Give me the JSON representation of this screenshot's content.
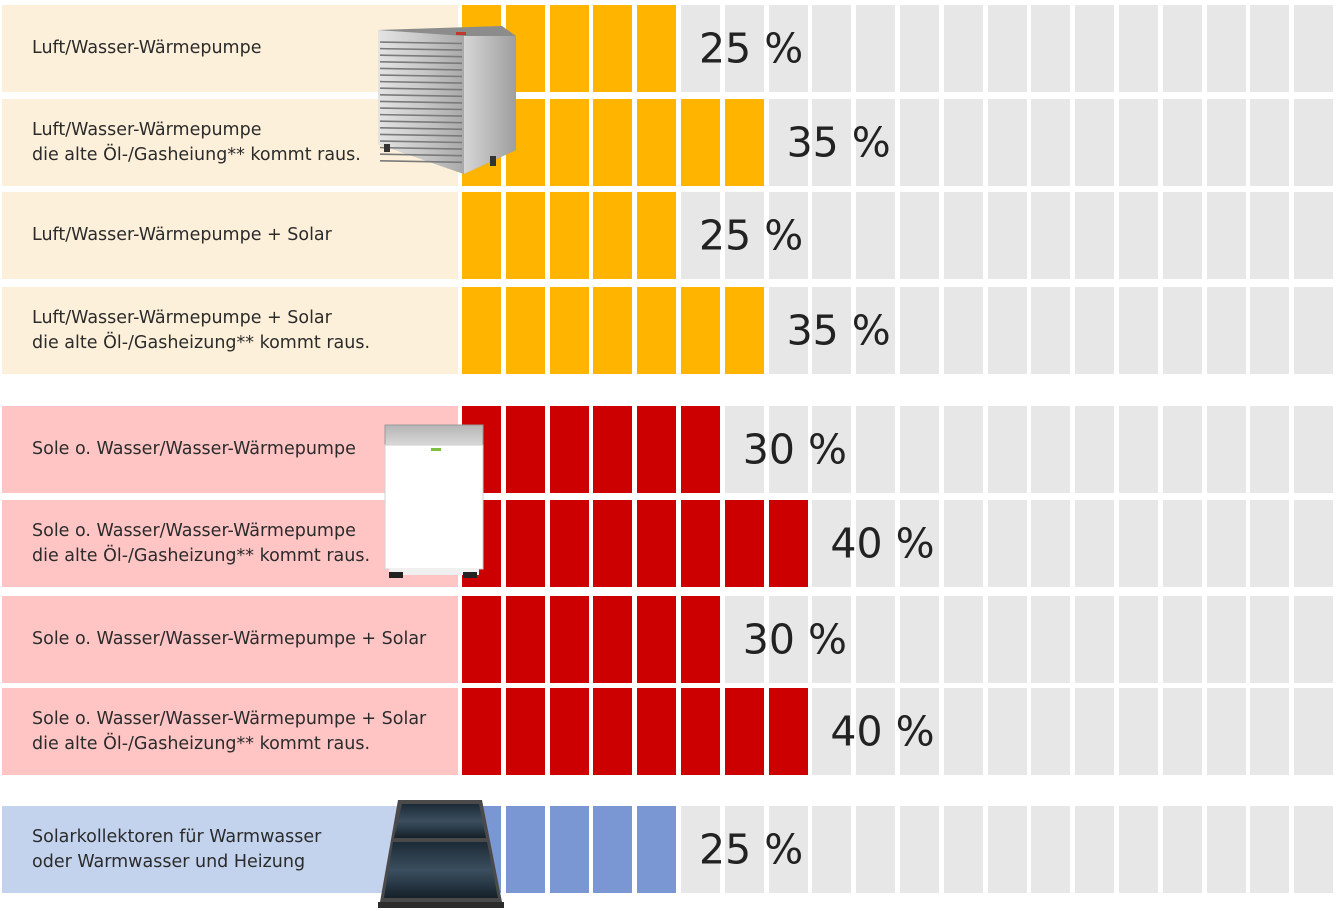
{
  "colors": {
    "yellow_label_bg": "#fdf0da",
    "yellow_fill": "#ffb400",
    "red_label_bg": "#ffc5c5",
    "red_fill": "#cc0000",
    "blue_label_bg": "#c3d3ee",
    "blue_fill": "#7b97d3",
    "empty_cell": "#e7e7e7"
  },
  "chart_data": {
    "type": "bar",
    "unit": "%",
    "segment_step": 5,
    "max_segments": 20,
    "rows": [
      {
        "group": "yellow",
        "label_lines": [
          "Luft/Wasser-Wärmepumpe"
        ],
        "value": 25,
        "value_label": "25 %"
      },
      {
        "group": "yellow",
        "label_lines": [
          "Luft/Wasser-Wärmepumpe",
          "die alte Öl-/Gasheiung** kommt raus."
        ],
        "value": 35,
        "value_label": "35 %"
      },
      {
        "group": "yellow",
        "label_lines": [
          "Luft/Wasser-Wärmepumpe + Solar"
        ],
        "value": 25,
        "value_label": "25 %"
      },
      {
        "group": "yellow",
        "label_lines": [
          "Luft/Wasser-Wärmepumpe + Solar",
          "die alte Öl-/Gasheizung** kommt raus."
        ],
        "value": 35,
        "value_label": "35 %"
      },
      {
        "group": "red",
        "label_lines": [
          "Sole o. Wasser/Wasser-Wärmepumpe"
        ],
        "value": 30,
        "value_label": "30 %"
      },
      {
        "group": "red",
        "label_lines": [
          "Sole o. Wasser/Wasser-Wärmepumpe",
          "die alte Öl-/Gasheizung** kommt raus."
        ],
        "value": 40,
        "value_label": "40 %"
      },
      {
        "group": "red",
        "label_lines": [
          "Sole o. Wasser/Wasser-Wärmepumpe + Solar"
        ],
        "value": 30,
        "value_label": "30 %"
      },
      {
        "group": "red",
        "label_lines": [
          "Sole o. Wasser/Wasser-Wärmepumpe + Solar",
          "die alte Öl-/Gasheizung** kommt raus."
        ],
        "value": 40,
        "value_label": "40 %"
      },
      {
        "group": "blue",
        "label_lines": [
          "Solarkollektoren für Warmwasser",
          "oder Warmwasser und Heizung"
        ],
        "value": 25,
        "value_label": "25 %"
      }
    ]
  }
}
